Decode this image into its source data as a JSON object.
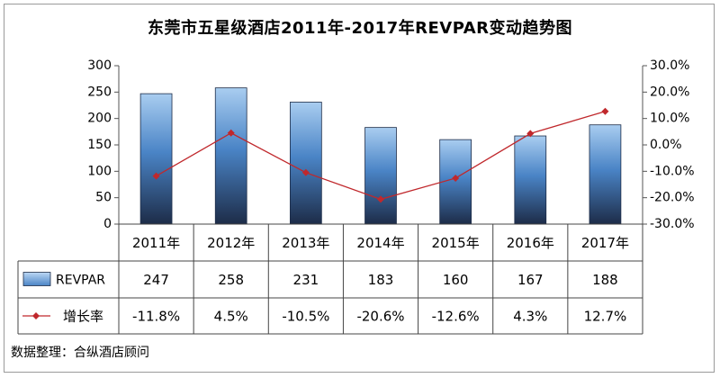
{
  "chart_data": {
    "type": "bar",
    "title": "东莞市五星级酒店2011年-2017年REVPAR变动趋势图",
    "categories": [
      "2011年",
      "2012年",
      "2013年",
      "2014年",
      "2015年",
      "2016年",
      "2017年"
    ],
    "series": [
      {
        "name": "REVPAR",
        "type": "bar",
        "axis": "left",
        "values": [
          247,
          258,
          231,
          183,
          160,
          167,
          188
        ],
        "labels": [
          "247",
          "258",
          "231",
          "183",
          "160",
          "167",
          "188"
        ],
        "color": "#4a84c6"
      },
      {
        "name": "增长率",
        "type": "line",
        "axis": "right",
        "values": [
          -11.8,
          4.5,
          -10.5,
          -20.6,
          -12.6,
          4.3,
          12.7
        ],
        "labels": [
          "-11.8%",
          "4.5%",
          "-10.5%",
          "-20.6%",
          "-12.6%",
          "4.3%",
          "12.7%"
        ],
        "color": "#c0282c"
      }
    ],
    "y_left": {
      "range": [
        0,
        300
      ],
      "ticks": [
        "0",
        "50",
        "100",
        "150",
        "200",
        "250",
        "300"
      ]
    },
    "y_right": {
      "range": [
        -30,
        30
      ],
      "ticks": [
        "-30.0%",
        "-20.0%",
        "-10.0%",
        "0.0%",
        "10.0%",
        "20.0%",
        "30.0%"
      ]
    },
    "grid": false,
    "data_table": true
  },
  "source": "数据整理：合纵酒店顾问"
}
